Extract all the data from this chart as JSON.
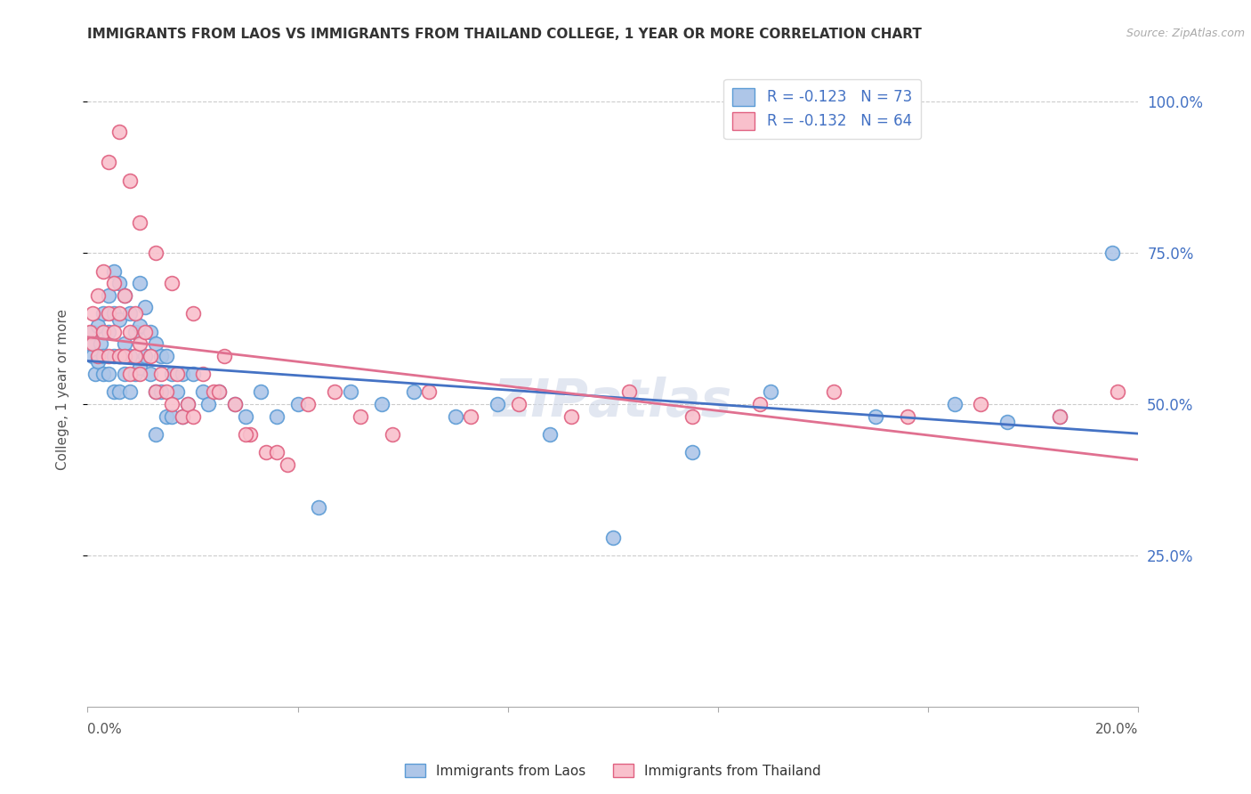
{
  "title": "IMMIGRANTS FROM LAOS VS IMMIGRANTS FROM THAILAND COLLEGE, 1 YEAR OR MORE CORRELATION CHART",
  "source": "Source: ZipAtlas.com",
  "ylabel": "College, 1 year or more",
  "legend1_label": "R = -0.123   N = 73",
  "legend2_label": "R = -0.132   N = 64",
  "color_laos_fill": "#aec6e8",
  "color_laos_edge": "#5b9bd5",
  "color_thailand_fill": "#f9c0cc",
  "color_thailand_edge": "#e06080",
  "color_laos_line": "#4472c4",
  "color_thailand_line": "#e07090",
  "watermark": "ZIPAtlas",
  "laos_x": [
    0.0005,
    0.001,
    0.001,
    0.0015,
    0.002,
    0.002,
    0.0025,
    0.003,
    0.003,
    0.003,
    0.004,
    0.004,
    0.004,
    0.005,
    0.005,
    0.005,
    0.005,
    0.006,
    0.006,
    0.006,
    0.006,
    0.007,
    0.007,
    0.007,
    0.008,
    0.008,
    0.008,
    0.009,
    0.009,
    0.01,
    0.01,
    0.01,
    0.011,
    0.011,
    0.012,
    0.012,
    0.013,
    0.013,
    0.013,
    0.014,
    0.014,
    0.015,
    0.015,
    0.016,
    0.016,
    0.017,
    0.018,
    0.018,
    0.019,
    0.02,
    0.022,
    0.023,
    0.025,
    0.028,
    0.03,
    0.033,
    0.036,
    0.04,
    0.044,
    0.05,
    0.056,
    0.062,
    0.07,
    0.078,
    0.088,
    0.1,
    0.115,
    0.13,
    0.15,
    0.165,
    0.175,
    0.185,
    0.195
  ],
  "laos_y": [
    0.6,
    0.58,
    0.62,
    0.55,
    0.63,
    0.57,
    0.6,
    0.65,
    0.58,
    0.55,
    0.68,
    0.62,
    0.55,
    0.72,
    0.65,
    0.58,
    0.52,
    0.7,
    0.64,
    0.58,
    0.52,
    0.68,
    0.6,
    0.55,
    0.65,
    0.58,
    0.52,
    0.62,
    0.55,
    0.7,
    0.63,
    0.56,
    0.66,
    0.58,
    0.62,
    0.55,
    0.6,
    0.52,
    0.45,
    0.58,
    0.52,
    0.58,
    0.48,
    0.55,
    0.48,
    0.52,
    0.55,
    0.48,
    0.5,
    0.55,
    0.52,
    0.5,
    0.52,
    0.5,
    0.48,
    0.52,
    0.48,
    0.5,
    0.33,
    0.52,
    0.5,
    0.52,
    0.48,
    0.5,
    0.45,
    0.28,
    0.42,
    0.52,
    0.48,
    0.5,
    0.47,
    0.48,
    0.75
  ],
  "thailand_x": [
    0.0005,
    0.001,
    0.001,
    0.002,
    0.002,
    0.003,
    0.003,
    0.004,
    0.004,
    0.005,
    0.005,
    0.006,
    0.006,
    0.007,
    0.007,
    0.008,
    0.008,
    0.009,
    0.009,
    0.01,
    0.01,
    0.011,
    0.012,
    0.013,
    0.014,
    0.015,
    0.016,
    0.017,
    0.018,
    0.019,
    0.02,
    0.022,
    0.024,
    0.026,
    0.028,
    0.031,
    0.034,
    0.038,
    0.042,
    0.047,
    0.052,
    0.058,
    0.065,
    0.073,
    0.082,
    0.092,
    0.103,
    0.115,
    0.128,
    0.142,
    0.156,
    0.17,
    0.185,
    0.196,
    0.004,
    0.006,
    0.008,
    0.01,
    0.013,
    0.016,
    0.02,
    0.025,
    0.03,
    0.036
  ],
  "thailand_y": [
    0.62,
    0.65,
    0.6,
    0.68,
    0.58,
    0.72,
    0.62,
    0.65,
    0.58,
    0.7,
    0.62,
    0.65,
    0.58,
    0.68,
    0.58,
    0.62,
    0.55,
    0.65,
    0.58,
    0.6,
    0.55,
    0.62,
    0.58,
    0.52,
    0.55,
    0.52,
    0.5,
    0.55,
    0.48,
    0.5,
    0.48,
    0.55,
    0.52,
    0.58,
    0.5,
    0.45,
    0.42,
    0.4,
    0.5,
    0.52,
    0.48,
    0.45,
    0.52,
    0.48,
    0.5,
    0.48,
    0.52,
    0.48,
    0.5,
    0.52,
    0.48,
    0.5,
    0.48,
    0.52,
    0.9,
    0.95,
    0.87,
    0.8,
    0.75,
    0.7,
    0.65,
    0.52,
    0.45,
    0.42
  ],
  "xmin": 0.0,
  "xmax": 0.2,
  "ymin": 0.0,
  "ymax": 1.05,
  "yticks": [
    0.25,
    0.5,
    0.75,
    1.0
  ],
  "ytick_labels": [
    "25.0%",
    "50.0%",
    "75.0%",
    "100.0%"
  ]
}
